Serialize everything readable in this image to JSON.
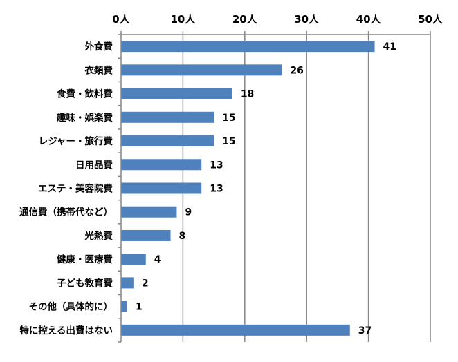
{
  "chart_data": {
    "type": "bar",
    "orientation": "horizontal",
    "title": "",
    "xlabel": "",
    "ylabel": "",
    "xlim": [
      0,
      50
    ],
    "x_ticks": [
      0,
      10,
      20,
      30,
      40,
      50
    ],
    "x_tick_labels": [
      "0人",
      "10人",
      "20人",
      "30人",
      "40人",
      "50人"
    ],
    "x_axis_position": "top",
    "grid": "vertical",
    "legend": "none",
    "bar_color": "#4f81bd",
    "gridline_color": "#868686",
    "categories": [
      "外食費",
      "衣類費",
      "食費・飲料費",
      "趣味・娯楽費",
      "レジャー・旅行費",
      "日用品費",
      "エステ・美容院費",
      "通信費（携帯代など）",
      "光熱費",
      "健康・医療費",
      "子ども教育費",
      "その他（具体的に）",
      "特に控える出費はない"
    ],
    "values": [
      41,
      26,
      18,
      15,
      15,
      13,
      13,
      9,
      8,
      4,
      2,
      1,
      37
    ],
    "data_labels": [
      "41",
      "26",
      "18",
      "15",
      "15",
      "13",
      "13",
      "9",
      "8",
      "4",
      "2",
      "1",
      "37"
    ]
  }
}
